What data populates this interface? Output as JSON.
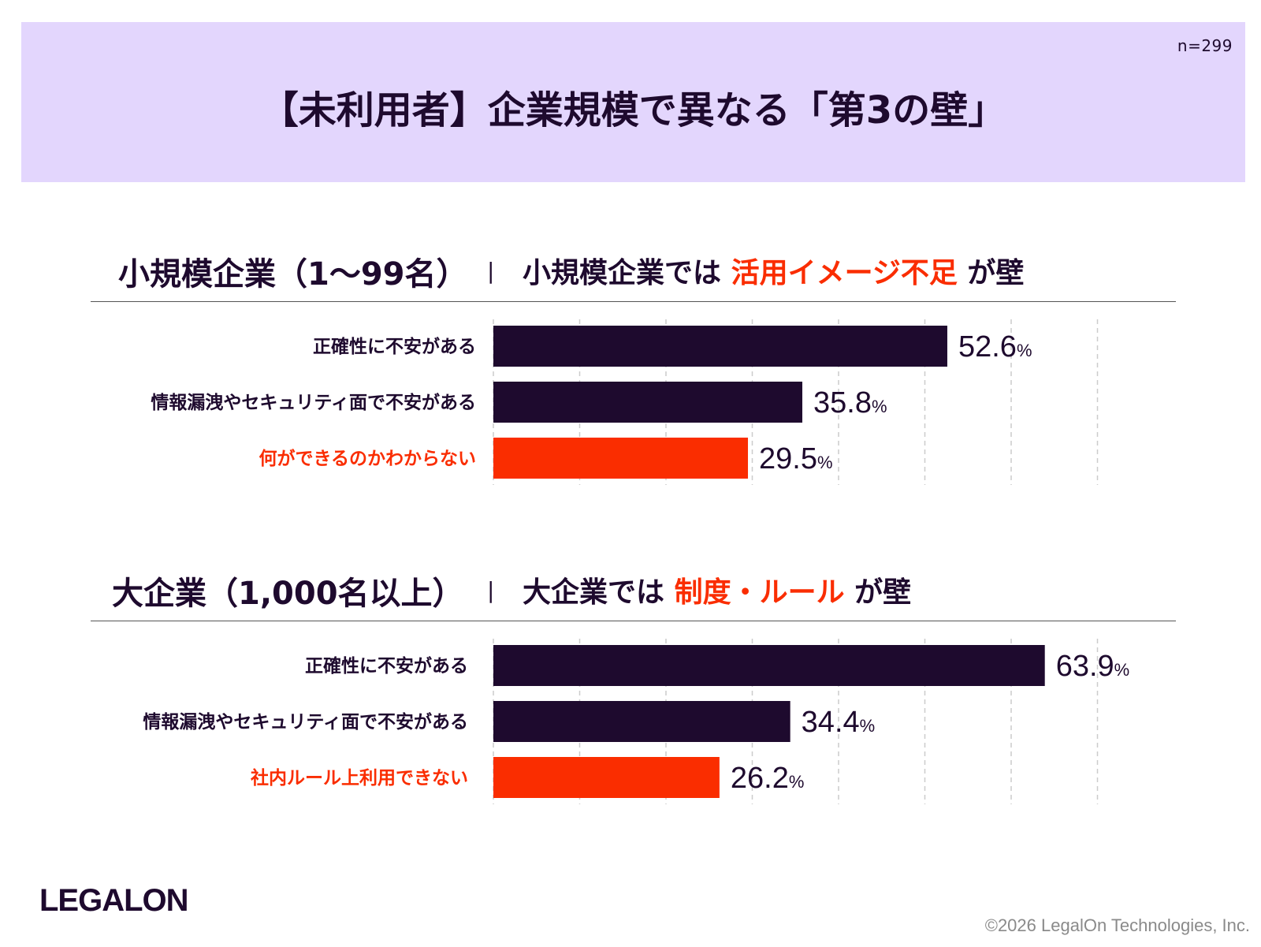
{
  "header": {
    "title": "【未利用者】企業規模で異なる「第3の壁」",
    "sample_size": "n=299",
    "background": "#e3d6fd"
  },
  "colors": {
    "dark_bar": "#1e0a2e",
    "highlight": "#fa2d00",
    "grid": "#cccccc"
  },
  "sections": [
    {
      "label": "小規模企業（1〜99名）",
      "separator": "|",
      "sub_prefix": "小規模企業では",
      "sub_highlight": "活用イメージ不足",
      "sub_suffix": "が壁"
    },
    {
      "label": "大企業（1,000名以上）",
      "separator": "|",
      "sub_prefix": "大企業では",
      "sub_highlight": "制度・ルール",
      "sub_suffix": "が壁"
    }
  ],
  "chart_data": [
    {
      "type": "bar",
      "orientation": "horizontal",
      "categories": [
        "正確性に不安がある",
        "情報漏洩やセキュリティ面で不安がある",
        "何ができるのかわからない"
      ],
      "values": [
        52.6,
        35.8,
        29.5
      ],
      "unit": "%",
      "highlight_index": 2,
      "xlim": [
        0,
        70
      ],
      "grid": true
    },
    {
      "type": "bar",
      "orientation": "horizontal",
      "categories": [
        "正確性に不安がある",
        "情報漏洩やセキュリティ面で不安がある",
        "社内ルール上利用できない"
      ],
      "values": [
        63.9,
        34.4,
        26.2
      ],
      "unit": "%",
      "highlight_index": 2,
      "xlim": [
        0,
        70
      ],
      "grid": true
    }
  ],
  "footer": {
    "logo": "LEGALON",
    "copyright": "©2026 LegalOn Technologies, Inc."
  }
}
